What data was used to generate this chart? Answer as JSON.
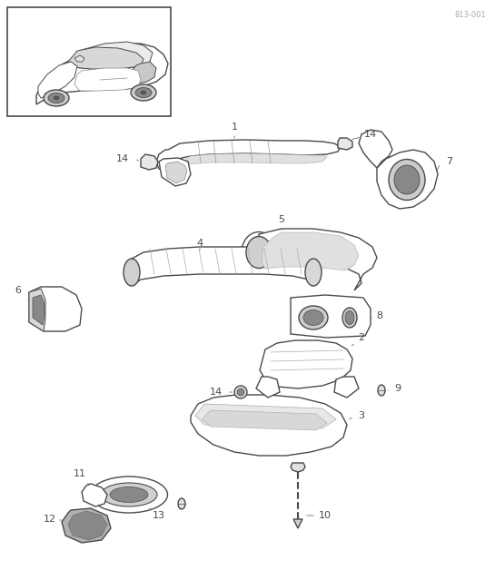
{
  "bg_color": "#ffffff",
  "line_color": "#4a4a4a",
  "label_color": "#4a4a4a",
  "fig_width": 5.45,
  "fig_height": 6.28,
  "dpi": 100,
  "diagram_number": "813-001"
}
